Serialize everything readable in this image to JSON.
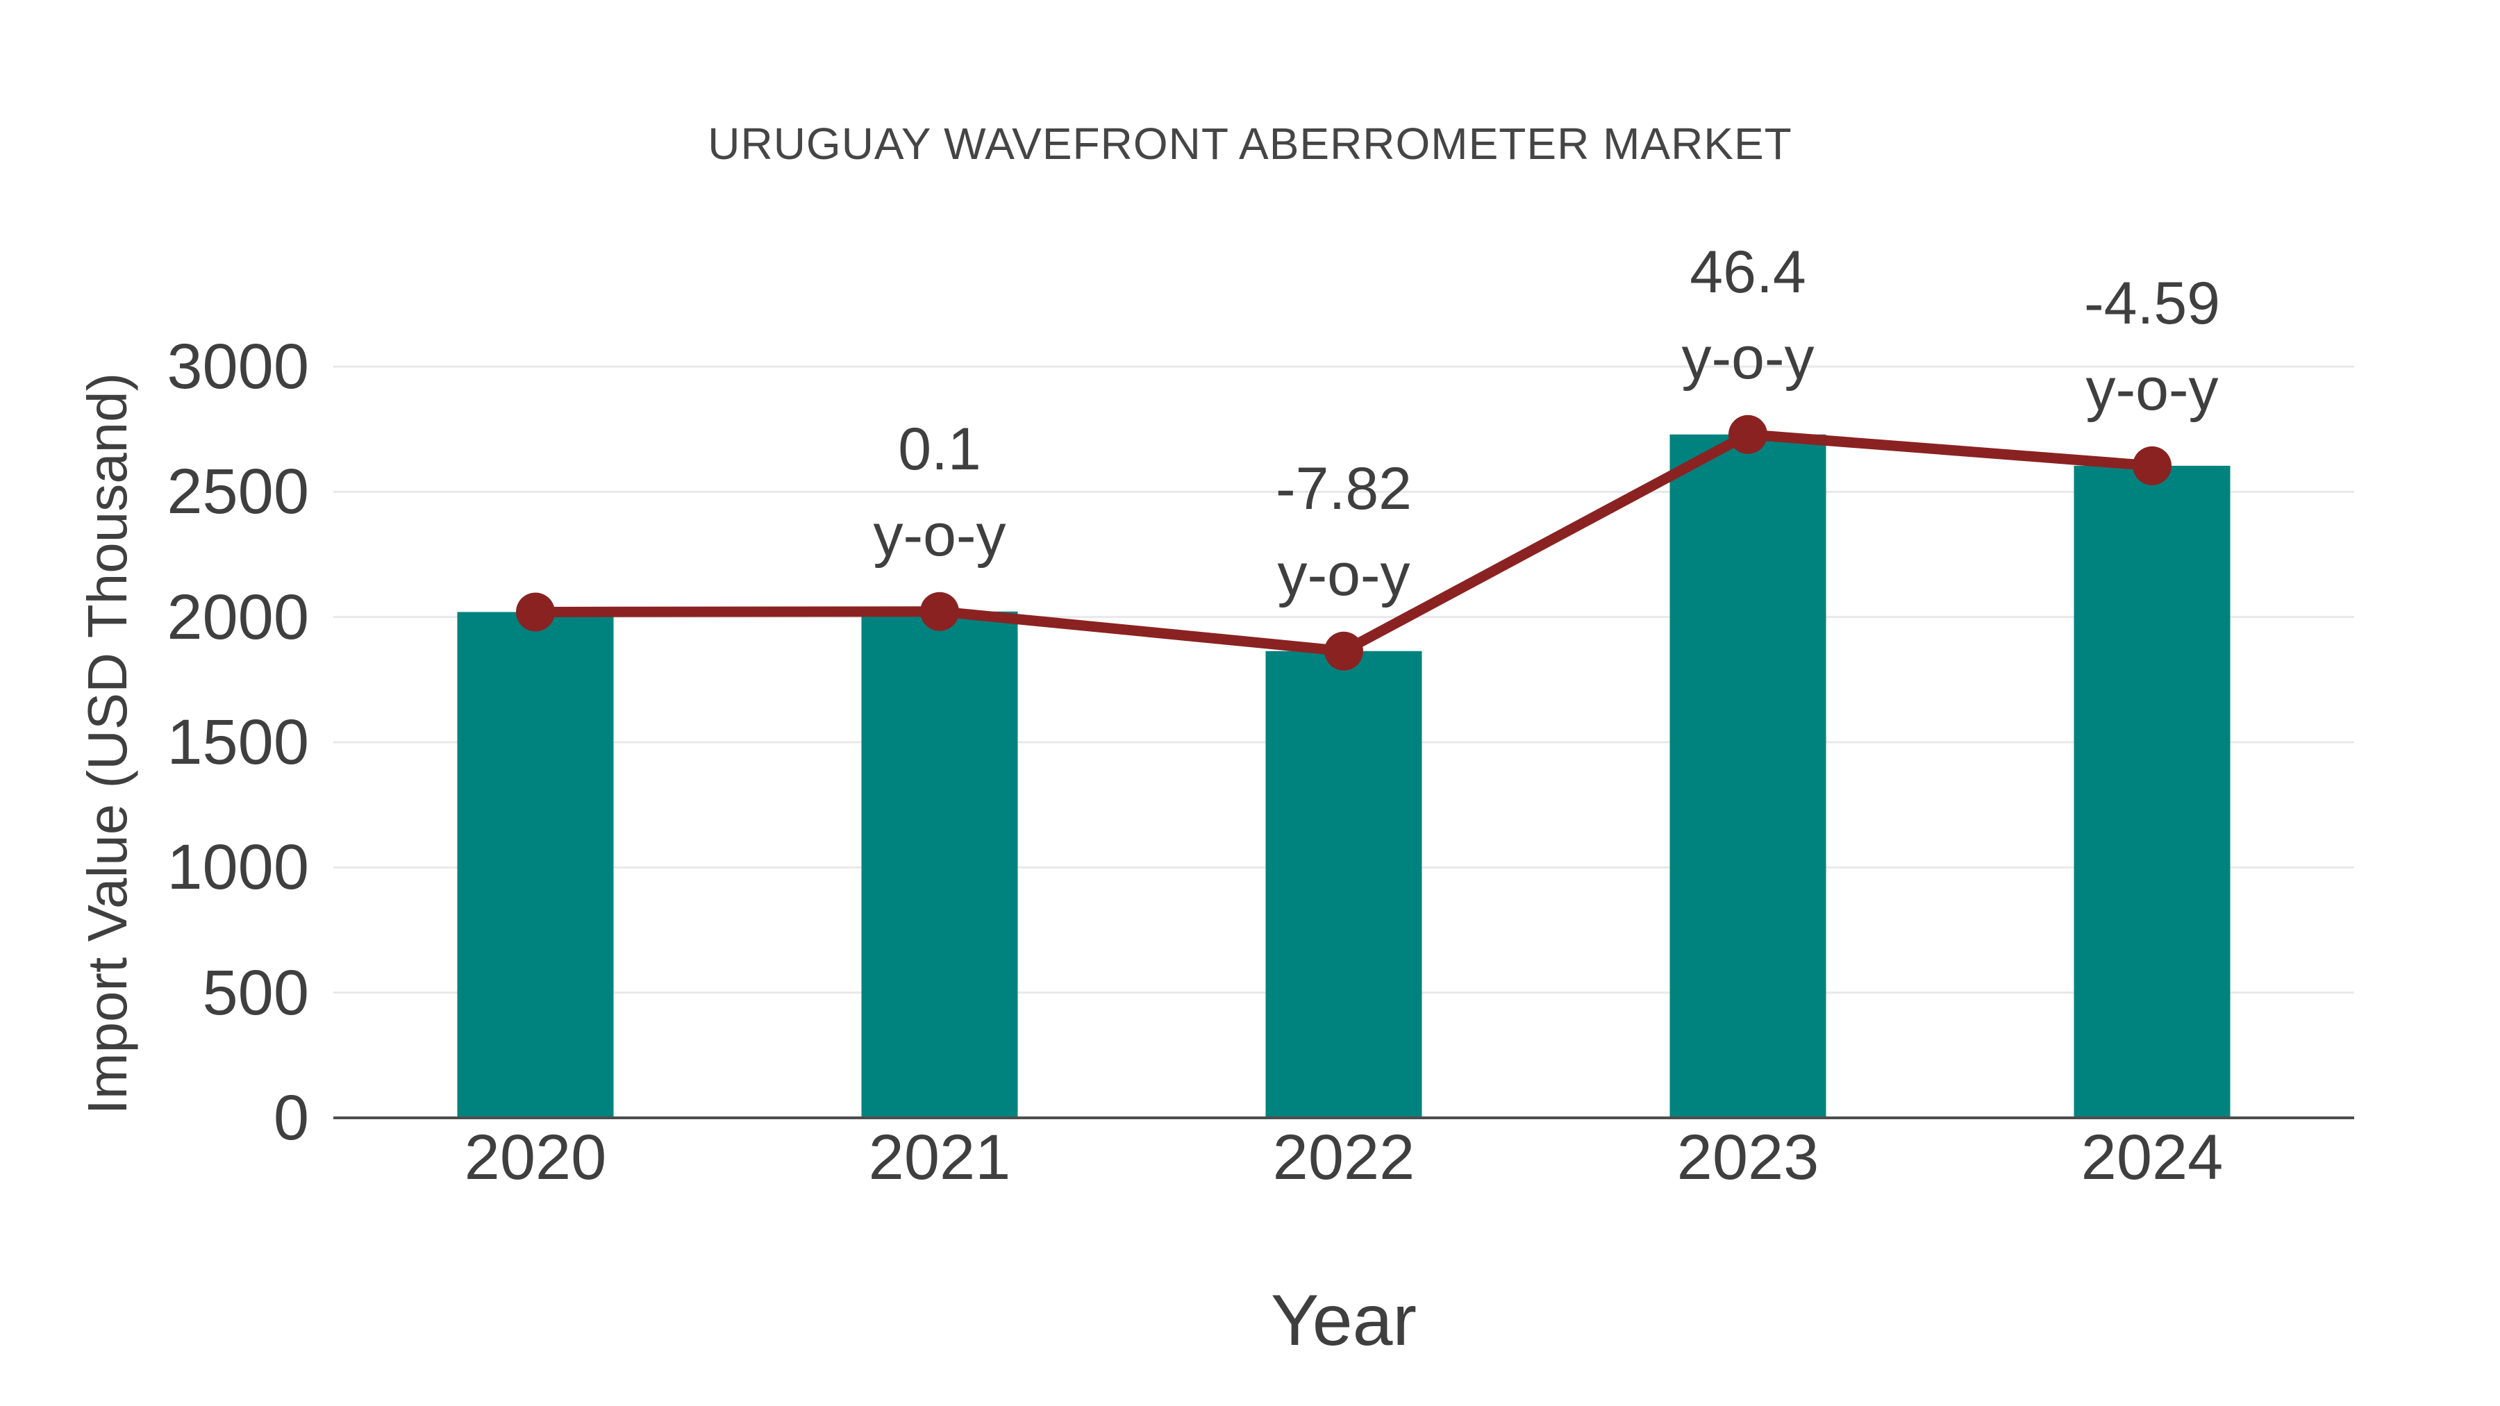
{
  "title": "URUGUAY WAVEFRONT ABERROMETER MARKET",
  "colors": {
    "bar": "#00827E",
    "line": "#8B2222",
    "marker": "#8B2222",
    "grid": "#E9E9E9",
    "axis": "#4D4D4D",
    "text": "#3F3F3F"
  },
  "chart_data": {
    "type": "bar",
    "overlay": "line-with-markers-through-bar-tops",
    "title": "URUGUAY WAVEFRONT ABERROMETER MARKET",
    "xlabel": "Year",
    "ylabel": "Import Value (USD Thousand)",
    "categories": [
      "2020",
      "2021",
      "2022",
      "2023",
      "2024"
    ],
    "values": [
      2020,
      2022,
      1864,
      2729,
      2604
    ],
    "yticks": [
      0,
      500,
      1000,
      1500,
      2000,
      2500,
      3000
    ],
    "ylim": [
      0,
      3000
    ],
    "grid": "horizontal",
    "legend": "none",
    "annotations": [
      {
        "category": "2020",
        "value": "",
        "suffix": ""
      },
      {
        "category": "2021",
        "value": "0.1",
        "suffix": "y-o-y"
      },
      {
        "category": "2022",
        "value": "-7.82",
        "suffix": "y-o-y"
      },
      {
        "category": "2023",
        "value": "46.4",
        "suffix": "y-o-y"
      },
      {
        "category": "2024",
        "value": "-4.59",
        "suffix": "y-o-y"
      }
    ]
  }
}
